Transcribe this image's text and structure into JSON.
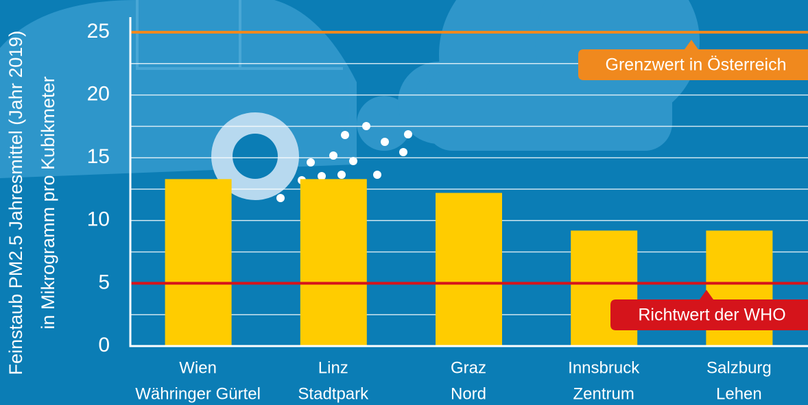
{
  "chart_data": {
    "type": "bar",
    "ylabel": [
      "Feinstaub PM2.5 Jahresmittel (Jahr 2019)",
      "in Mikrogramm pro Kubikmeter"
    ],
    "categories": [
      [
        "Wien",
        "Währinger Gürtel"
      ],
      [
        "Linz",
        "Stadtpark"
      ],
      [
        "Graz",
        "Nord"
      ],
      [
        "Innsbruck",
        "Zentrum"
      ],
      [
        "Salzburg",
        "Lehen"
      ]
    ],
    "values": [
      13.3,
      13.3,
      12.2,
      9.2,
      9.2
    ],
    "color": "#ffcc00",
    "ylim": [
      0,
      25
    ],
    "yticks": [
      0,
      5,
      10,
      15,
      20,
      25
    ],
    "minor_yticks": [
      2.5,
      7.5,
      12.5,
      17.5,
      22.5
    ],
    "grid": true,
    "reference_lines": [
      {
        "value": 25,
        "label": "Grenzwert in Österreich",
        "color": "#f0891e"
      },
      {
        "value": 5,
        "label": "Richtwert der WHO",
        "color": "#d5141b"
      }
    ]
  }
}
